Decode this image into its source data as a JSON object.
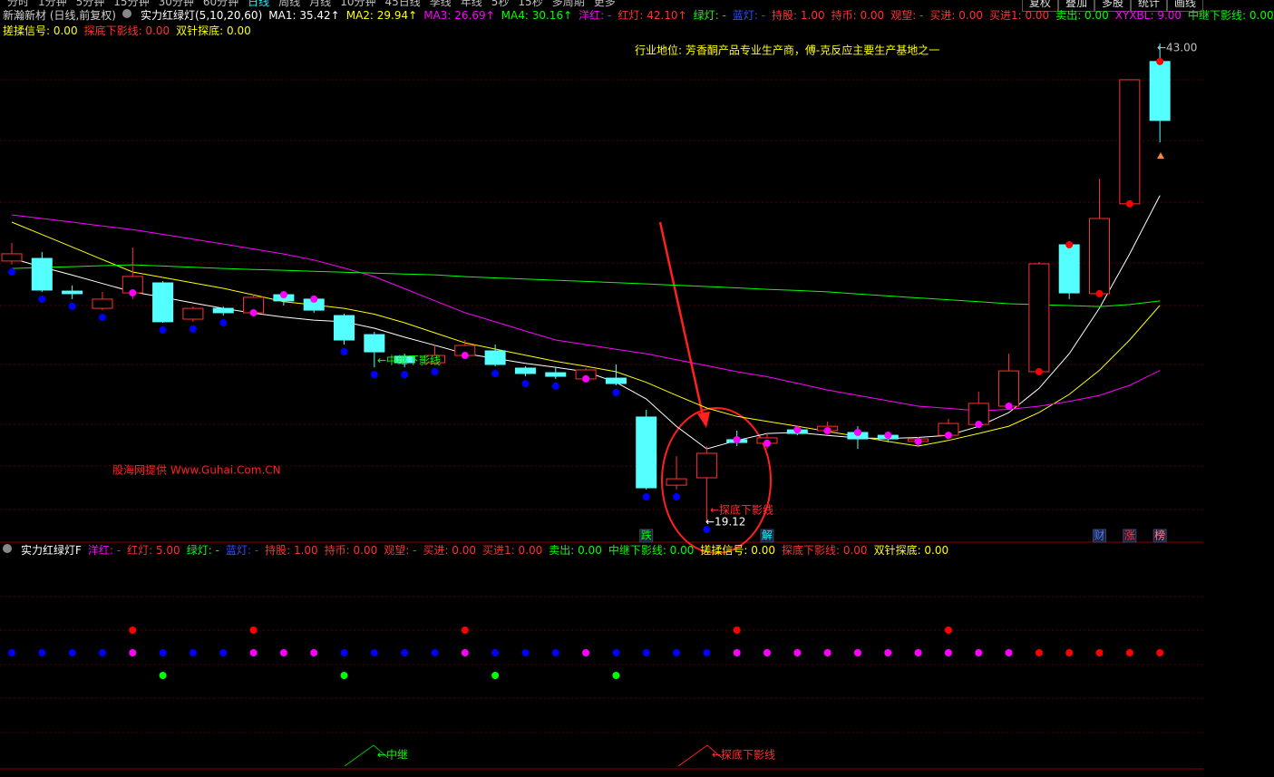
{
  "menu": [
    "分时",
    "1分钟",
    "5分钟",
    "15分钟",
    "30分钟",
    "60分钟",
    "日线",
    "周线",
    "月线",
    "10分钟",
    "45日线",
    "季线",
    "年线",
    "5秒",
    "15秒",
    "多周期",
    "更多"
  ],
  "buttons": [
    "复权",
    "叠加",
    "多股",
    "统计",
    "画线"
  ],
  "header": {
    "line1": [
      {
        "text": "新瀚新材 (日线,前复权)",
        "color": "#d0d0d0"
      },
      {
        "text": "实力红绿灯(5,10,20,60)",
        "color": "#ffffff"
      },
      {
        "text": "MA1: 35.42↑",
        "color": "#ffffff"
      },
      {
        "text": "MA2: 29.94↑",
        "color": "#ffff00"
      },
      {
        "text": "MA3: 26.69↑",
        "color": "#ff00ff"
      },
      {
        "text": "MA4: 30.16↑",
        "color": "#00ff00"
      },
      {
        "text": "洋红: -",
        "color": "#ff00ff"
      },
      {
        "text": "红灯: 42.10↑",
        "color": "#ff3030"
      },
      {
        "text": "绿灯: -",
        "color": "#00ff00"
      },
      {
        "text": "蓝灯: -",
        "color": "#3050ff"
      },
      {
        "text": "持股: 1.00",
        "color": "#ff3030"
      },
      {
        "text": "持币: 0.00",
        "color": "#ff3030"
      },
      {
        "text": "观望: -",
        "color": "#ff3030"
      },
      {
        "text": "买进: 0.00",
        "color": "#ff3030"
      },
      {
        "text": "买进1: 0.00",
        "color": "#ff3030"
      },
      {
        "text": "卖出: 0.00",
        "color": "#00ff00"
      },
      {
        "text": "XYXBL: 9.00",
        "color": "#ff00ff"
      },
      {
        "text": "中继下影线: 0.00",
        "color": "#00ff00"
      }
    ],
    "line2": [
      {
        "text": "搓揉信号: 0.00",
        "color": "#ffff00"
      },
      {
        "text": "探底下影线: 0.00",
        "color": "#ff3030"
      },
      {
        "text": "双针探底: 0.00",
        "color": "#ffff00"
      }
    ],
    "lower": [
      {
        "text": "实力红绿灯F",
        "color": "#ffffff"
      },
      {
        "text": "洋红: -",
        "color": "#ff00ff"
      },
      {
        "text": "红灯: 5.00",
        "color": "#ff3030"
      },
      {
        "text": "绿灯: -",
        "color": "#00ff00"
      },
      {
        "text": "蓝灯: -",
        "color": "#3050ff"
      },
      {
        "text": "持股: 1.00",
        "color": "#ff3030"
      },
      {
        "text": "持币: 0.00",
        "color": "#ff3030"
      },
      {
        "text": "观望: -",
        "color": "#ff3030"
      },
      {
        "text": "买进: 0.00",
        "color": "#ff3030"
      },
      {
        "text": "买进1: 0.00",
        "color": "#ff3030"
      },
      {
        "text": "卖出: 0.00",
        "color": "#00ff00"
      },
      {
        "text": "中继下影线: 0.00",
        "color": "#00ff00"
      },
      {
        "text": "搓揉信号: 0.00",
        "color": "#ffff00"
      },
      {
        "text": "探底下影线: 0.00",
        "color": "#ff3030"
      },
      {
        "text": "双针探底: 0.00",
        "color": "#ffff00"
      }
    ]
  },
  "chart_data": {
    "type": "candlestick",
    "ylim": [
      18.49,
      43.81
    ],
    "up_color": "#ff3232",
    "down_color": "#54ffff",
    "candles": {
      "open": [
        32.15,
        32.28,
        30.65,
        29.79,
        30.56,
        31.06,
        29.25,
        29.79,
        29.57,
        30.47,
        30.25,
        29.43,
        28.48,
        27.4,
        27.08,
        27.44,
        27.67,
        26.81,
        26.58,
        26.27,
        26.31,
        24.37,
        20.97,
        21.34,
        23.24,
        23.06,
        23.73,
        23.69,
        23.6,
        23.46,
        23.15,
        23.46,
        24.0,
        24.91,
        26.63,
        32.96,
        30.52,
        35.0,
        42.1
      ],
      "high": [
        33.05,
        32.6,
        30.93,
        30.61,
        32.82,
        31.15,
        29.88,
        29.88,
        30.47,
        30.61,
        30.34,
        29.52,
        28.62,
        27.53,
        27.99,
        28.21,
        27.99,
        26.9,
        26.85,
        26.81,
        26.99,
        24.73,
        22.42,
        22.92,
        23.69,
        23.55,
        23.91,
        24.14,
        23.91,
        23.64,
        23.37,
        24.28,
        25.63,
        27.53,
        32.1,
        33.05,
        36.26,
        41.19,
        43.0
      ],
      "low": [
        31.97,
        30.61,
        30.25,
        29.7,
        30.25,
        29.07,
        29.12,
        29.43,
        29.43,
        29.93,
        29.57,
        27.99,
        26.85,
        26.85,
        26.99,
        27.31,
        26.9,
        26.4,
        26.27,
        26.18,
        25.95,
        20.75,
        20.75,
        19.12,
        22.92,
        22.78,
        23.46,
        23.55,
        22.78,
        23.1,
        23.06,
        23.37,
        23.91,
        24.82,
        26.54,
        30.25,
        30.43,
        34.86,
        38.07
      ],
      "close": [
        32.51,
        30.7,
        30.52,
        30.25,
        31.38,
        29.12,
        29.79,
        29.57,
        30.34,
        30.16,
        29.7,
        28.21,
        27.62,
        27.08,
        27.44,
        27.94,
        26.99,
        26.54,
        26.4,
        26.72,
        26.04,
        20.84,
        21.29,
        22.56,
        23.1,
        23.33,
        23.55,
        23.91,
        23.28,
        23.28,
        23.28,
        24.05,
        25.05,
        26.67,
        32.01,
        30.56,
        34.27,
        41.19,
        39.16
      ]
    },
    "ma_series": [
      {
        "name": "MA1",
        "color": "#ffffff",
        "values": [
          32.28,
          31.85,
          31.45,
          31.03,
          30.61,
          30.34,
          30.06,
          29.79,
          29.55,
          29.35,
          29.2,
          29.12,
          28.8,
          28.35,
          27.95,
          27.53,
          27.3,
          27.05,
          26.85,
          26.63,
          26.1,
          25.27,
          23.9,
          22.78,
          23.2,
          23.55,
          23.6,
          23.45,
          23.33,
          23.3,
          23.35,
          23.46,
          23.9,
          24.59,
          25.8,
          27.53,
          29.8,
          32.5,
          35.42
        ]
      },
      {
        "name": "MA2",
        "color": "#ffff00",
        "values": [
          34.09,
          33.47,
          32.85,
          32.22,
          31.6,
          31.33,
          31.06,
          30.79,
          30.46,
          30.12,
          29.96,
          29.79,
          29.5,
          29.07,
          28.57,
          28.07,
          27.76,
          27.45,
          27.15,
          26.9,
          26.63,
          26.1,
          25.45,
          24.82,
          24.4,
          24.15,
          23.91,
          23.65,
          23.4,
          23.15,
          22.92,
          23.2,
          23.55,
          23.91,
          24.6,
          25.5,
          26.7,
          28.21,
          29.94
        ]
      },
      {
        "name": "MA3",
        "color": "#ff00ff",
        "values": [
          34.45,
          34.27,
          34.09,
          33.9,
          33.72,
          33.48,
          33.24,
          33.0,
          32.75,
          32.5,
          32.2,
          31.8,
          31.37,
          30.77,
          30.17,
          29.57,
          29.12,
          28.66,
          28.21,
          27.98,
          27.75,
          27.53,
          27.23,
          26.93,
          26.63,
          26.38,
          26.05,
          25.72,
          25.45,
          25.18,
          24.91,
          24.8,
          24.68,
          24.75,
          24.91,
          25.15,
          25.45,
          25.95,
          26.69
        ]
      },
      {
        "name": "MA4",
        "color": "#00ff00",
        "values": [
          31.78,
          31.83,
          31.87,
          31.92,
          31.96,
          31.9,
          31.84,
          31.78,
          31.73,
          31.69,
          31.64,
          31.59,
          31.55,
          31.5,
          31.46,
          31.37,
          31.31,
          31.25,
          31.19,
          31.13,
          31.07,
          31.01,
          30.94,
          30.88,
          30.81,
          30.74,
          30.68,
          30.61,
          30.51,
          30.41,
          30.31,
          30.22,
          30.12,
          30.02,
          29.97,
          29.93,
          29.88,
          29.98,
          30.16
        ]
      }
    ],
    "dot_rows": [
      [
        null,
        null,
        null,
        null,
        "#ff0000",
        null,
        null,
        null,
        "#ff0000",
        null,
        null,
        null,
        null,
        null,
        null,
        "#ff0000",
        null,
        null,
        null,
        null,
        null,
        null,
        null,
        null,
        "#ff0000",
        null,
        null,
        null,
        null,
        null,
        null,
        "#ff0000",
        null,
        null,
        null,
        null,
        null,
        null,
        null
      ],
      [
        "#0000ff",
        "#0000ff",
        "#0000ff",
        "#0000ff",
        "#ff00ff",
        "#0000ff",
        "#0000ff",
        "#0000ff",
        "#ff00ff",
        "#ff00ff",
        "#ff00ff",
        "#0000ff",
        "#0000ff",
        "#0000ff",
        "#0000ff",
        "#ff00ff",
        "#0000ff",
        "#0000ff",
        "#0000ff",
        "#ff00ff",
        "#0000ff",
        "#0000ff",
        "#0000ff",
        "#0000ff",
        "#ff00ff",
        "#ff00ff",
        "#ff00ff",
        "#ff00ff",
        "#ff00ff",
        "#ff00ff",
        "#ff00ff",
        "#ff00ff",
        "#ff00ff",
        "#ff00ff",
        "#ff0000",
        "#ff0000",
        "#ff0000",
        "#ff0000",
        "#ff0000"
      ],
      [
        null,
        null,
        null,
        null,
        null,
        "#00ff00",
        null,
        null,
        null,
        null,
        null,
        "#00ff00",
        null,
        null,
        null,
        null,
        "#00ff00",
        null,
        null,
        null,
        "#00ff00",
        null,
        null,
        null,
        null,
        null,
        null,
        null,
        null,
        null,
        null,
        null,
        null,
        null,
        null,
        null,
        null,
        null,
        null
      ]
    ],
    "annotations": [
      {
        "text": "行业地位: 芳香酮产品专业生产商，傅-克反应主要生产基地之一",
        "color": "#ffff00"
      },
      {
        "text": "股海网提供 Www.Guhai.Com.CN",
        "color": "#ff2020"
      },
      {
        "text": "←中继下影线",
        "color": "#00ff00"
      },
      {
        "text": "←探底下影线",
        "color": "#ff3030"
      },
      {
        "text": "←19.12",
        "color": "#ffffff"
      },
      {
        "text": "←43.00",
        "color": "#c0c0c0"
      }
    ],
    "markers": [
      {
        "text": "跌",
        "color": "#00ff00"
      },
      {
        "text": "解",
        "color": "#00ffff"
      },
      {
        "text": "财",
        "color": "#4080ff"
      },
      {
        "text": "涨",
        "color": "#ff3030"
      },
      {
        "text": "榜",
        "color": "#ff8080"
      }
    ],
    "lower_labels": [
      {
        "text": "←中继",
        "color": "#00ff00"
      },
      {
        "text": "←探底下影线",
        "color": "#ff3030"
      }
    ]
  }
}
